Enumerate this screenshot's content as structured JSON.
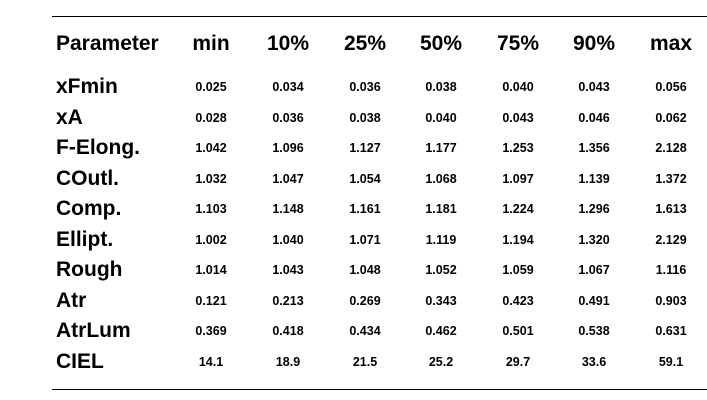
{
  "table": {
    "headers": [
      "Parameter",
      "min",
      "10%",
      "25%",
      "50%",
      "75%",
      "90%",
      "max"
    ],
    "rows": [
      {
        "parameter": "xFmin",
        "values": [
          "0.025",
          "0.034",
          "0.036",
          "0.038",
          "0.040",
          "0.043",
          "0.056"
        ]
      },
      {
        "parameter": "xA",
        "values": [
          "0.028",
          "0.036",
          "0.038",
          "0.040",
          "0.043",
          "0.046",
          "0.062"
        ]
      },
      {
        "parameter": "F-Elong.",
        "values": [
          "1.042",
          "1.096",
          "1.127",
          "1.177",
          "1.253",
          "1.356",
          "2.128"
        ]
      },
      {
        "parameter": "COutl.",
        "values": [
          "1.032",
          "1.047",
          "1.054",
          "1.068",
          "1.097",
          "1.139",
          "1.372"
        ]
      },
      {
        "parameter": "Comp.",
        "values": [
          "1.103",
          "1.148",
          "1.161",
          "1.181",
          "1.224",
          "1.296",
          "1.613"
        ]
      },
      {
        "parameter": "Ellipt.",
        "values": [
          "1.002",
          "1.040",
          "1.071",
          "1.119",
          "1.194",
          "1.320",
          "2.129"
        ]
      },
      {
        "parameter": "Rough",
        "values": [
          "1.014",
          "1.043",
          "1.048",
          "1.052",
          "1.059",
          "1.067",
          "1.116"
        ]
      },
      {
        "parameter": "Atr",
        "values": [
          "0.121",
          "0.213",
          "0.269",
          "0.343",
          "0.423",
          "0.491",
          "0.903"
        ]
      },
      {
        "parameter": "AtrLum",
        "values": [
          "0.369",
          "0.418",
          "0.434",
          "0.462",
          "0.501",
          "0.538",
          "0.631"
        ]
      },
      {
        "parameter": "CIEL",
        "values": [
          "14.1",
          "18.9",
          "21.5",
          "25.2",
          "29.7",
          "33.6",
          "59.1"
        ]
      }
    ]
  }
}
